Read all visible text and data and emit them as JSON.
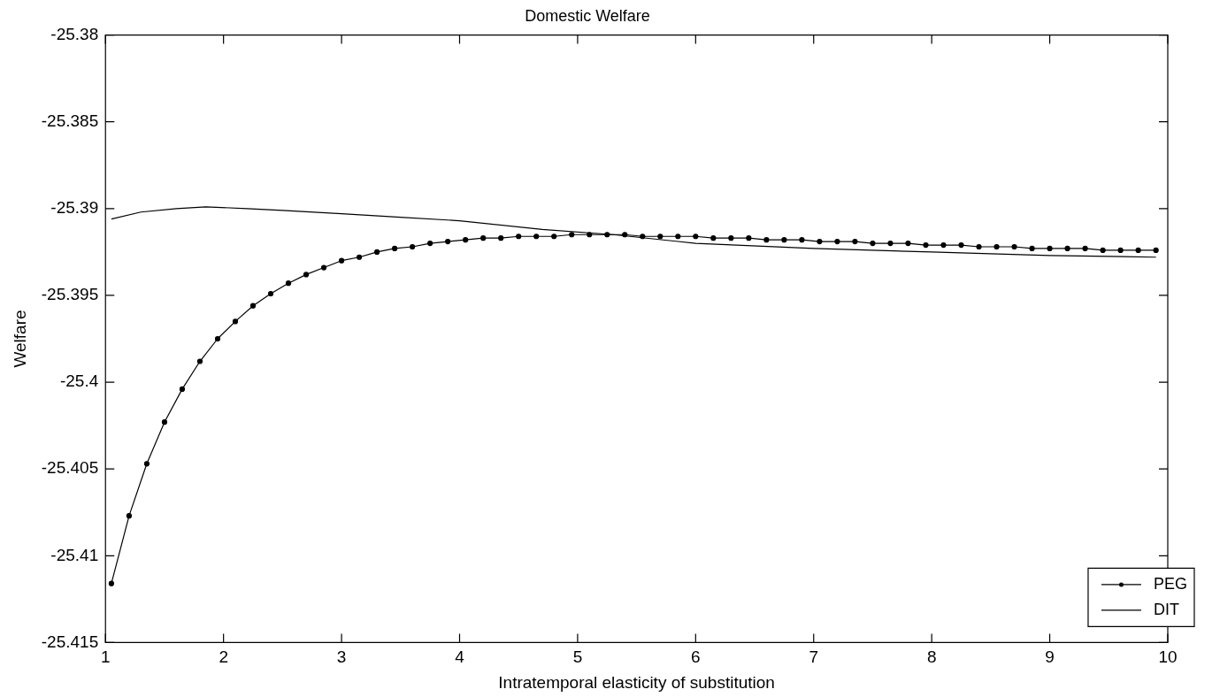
{
  "chart_data": {
    "type": "line",
    "title": "Domestic Welfare",
    "xlabel": "Intratemporal elasticity of substitution",
    "ylabel": "Welfare",
    "xlim": [
      1,
      10
    ],
    "xticks": [
      1,
      2,
      3,
      4,
      5,
      6,
      7,
      8,
      9,
      10
    ],
    "ylim": [
      -25.415,
      -25.38
    ],
    "yticks": [
      -25.415,
      -25.41,
      -25.405,
      -25.4,
      -25.395,
      -25.39,
      -25.385,
      -25.38
    ],
    "grid": false,
    "legend": "bottom right",
    "line_style": "solid",
    "series": [
      {
        "name": "PEG",
        "color": "#000000",
        "marker": "circle",
        "x": [
          1.05,
          1.2,
          1.35,
          1.5,
          1.65,
          1.8,
          1.95,
          2.1,
          2.25,
          2.4,
          2.55,
          2.7,
          2.85,
          3.0,
          3.15,
          3.3,
          3.45,
          3.6,
          3.75,
          3.9,
          4.05,
          4.2,
          4.35,
          4.5,
          4.65,
          4.8,
          4.95,
          5.1,
          5.25,
          5.4,
          5.55,
          5.7,
          5.85,
          6.0,
          6.15,
          6.3,
          6.45,
          6.6,
          6.75,
          6.9,
          7.05,
          7.2,
          7.35,
          7.5,
          7.65,
          7.8,
          7.95,
          8.1,
          8.25,
          8.4,
          8.55,
          8.7,
          8.85,
          9.0,
          9.15,
          9.3,
          9.45,
          9.6,
          9.75,
          9.9
        ],
        "values": [
          -25.4116,
          -25.4077,
          -25.4047,
          -25.4023,
          -25.4004,
          -25.3988,
          -25.3975,
          -25.3965,
          -25.3956,
          -25.3949,
          -25.3943,
          -25.3938,
          -25.3934,
          -25.393,
          -25.3928,
          -25.3925,
          -25.3923,
          -25.3922,
          -25.392,
          -25.3919,
          -25.3918,
          -25.3917,
          -25.3917,
          -25.3916,
          -25.3916,
          -25.3916,
          -25.3915,
          -25.3915,
          -25.3915,
          -25.3915,
          -25.3916,
          -25.3916,
          -25.3916,
          -25.3916,
          -25.3917,
          -25.3917,
          -25.3917,
          -25.3918,
          -25.3918,
          -25.3918,
          -25.3919,
          -25.3919,
          -25.3919,
          -25.392,
          -25.392,
          -25.392,
          -25.3921,
          -25.3921,
          -25.3921,
          -25.3922,
          -25.3922,
          -25.3922,
          -25.3923,
          -25.3923,
          -25.3923,
          -25.3923,
          -25.3924,
          -25.3924,
          -25.3924,
          -25.3924
        ]
      },
      {
        "name": "DIT",
        "color": "#000000",
        "marker": "none",
        "x": [
          1.05,
          1.3,
          1.6,
          1.85,
          2.2,
          2.5,
          3.0,
          3.5,
          4.0,
          4.7,
          5.3,
          6.0,
          7.0,
          8.0,
          9.0,
          9.9
        ],
        "values": [
          -25.3906,
          -25.3902,
          -25.39,
          -25.3899,
          -25.39,
          -25.3901,
          -25.3903,
          -25.3905,
          -25.3907,
          -25.3912,
          -25.3915,
          -25.392,
          -25.3923,
          -25.3925,
          -25.3927,
          -25.3928
        ]
      }
    ]
  }
}
